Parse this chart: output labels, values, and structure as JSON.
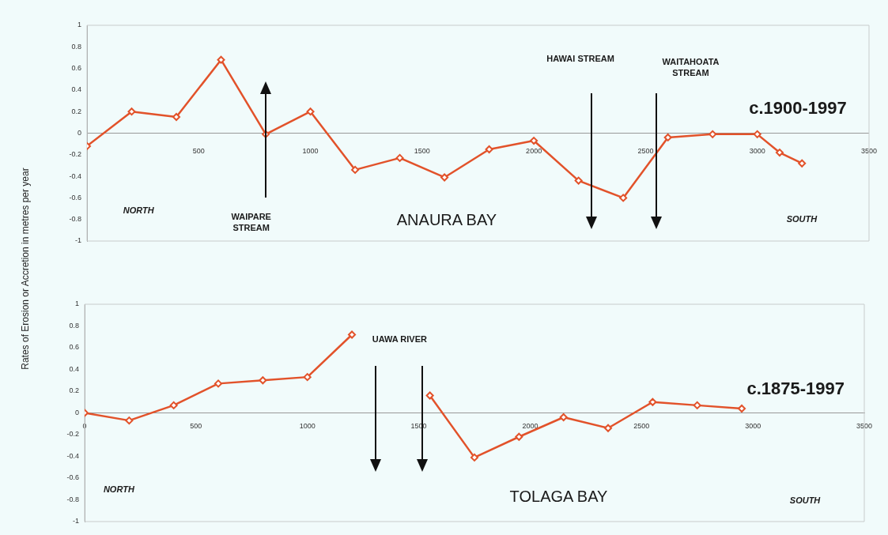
{
  "chart_data": [
    {
      "type": "line",
      "ylabel": "Rates of Erosion or Accretion in metres per year",
      "xlim": [
        0,
        3500
      ],
      "ylim": [
        -1,
        1
      ],
      "xticks": [
        500,
        1000,
        1500,
        2000,
        2500,
        3000,
        3500
      ],
      "yticks": [
        -1,
        -0.8,
        -0.6,
        -0.4,
        -0.2,
        0,
        0.2,
        0.4,
        0.6,
        0.8,
        1
      ],
      "marker": "diamond",
      "series": [
        {
          "color": "#e2522a",
          "x": [
            0,
            200,
            400,
            600,
            800,
            1000,
            1200,
            1400,
            1600,
            1800,
            2000,
            2200,
            2400,
            2600,
            2800,
            3000,
            3100,
            3200
          ],
          "values": [
            -0.12,
            0.2,
            0.15,
            0.68,
            -0.01,
            0.2,
            -0.34,
            -0.23,
            -0.41,
            -0.15,
            -0.07,
            -0.44,
            -0.6,
            -0.04,
            -0.01,
            -0.01,
            -0.18,
            -0.28
          ]
        }
      ],
      "annotations": [
        "NORTH",
        "WAIPARE\nSTREAM",
        "HAWAI STREAM",
        "WAITAHOATA\nSTREAM",
        "ANAURA BAY",
        "c.1900-1997",
        "SOUTH"
      ]
    },
    {
      "type": "line",
      "xlim": [
        0,
        3500
      ],
      "ylim": [
        -1,
        1
      ],
      "xticks": [
        0,
        500,
        1000,
        1500,
        2000,
        2500,
        3000,
        3500
      ],
      "yticks": [
        -1,
        -0.8,
        -0.6,
        -0.4,
        -0.2,
        0,
        0.2,
        0.4,
        0.6,
        0.8,
        1
      ],
      "marker": "diamond",
      "series": [
        {
          "color": "#e2522a",
          "x": [
            0,
            200,
            400,
            600,
            800,
            1000,
            1200
          ],
          "values": [
            0,
            -0.07,
            0.07,
            0.27,
            0.3,
            0.33,
            0.72
          ]
        },
        {
          "color": "#e2522a",
          "x": [
            1550,
            1750,
            1950,
            2150,
            2350,
            2550,
            2750,
            2950
          ],
          "values": [
            0.16,
            -0.41,
            -0.22,
            -0.04,
            -0.14,
            0.1,
            0.07,
            0.04
          ]
        }
      ],
      "annotations": [
        "NORTH",
        "UAWA RIVER",
        "TOLAGA BAY",
        "c.1875-1997",
        "SOUTH"
      ]
    }
  ]
}
